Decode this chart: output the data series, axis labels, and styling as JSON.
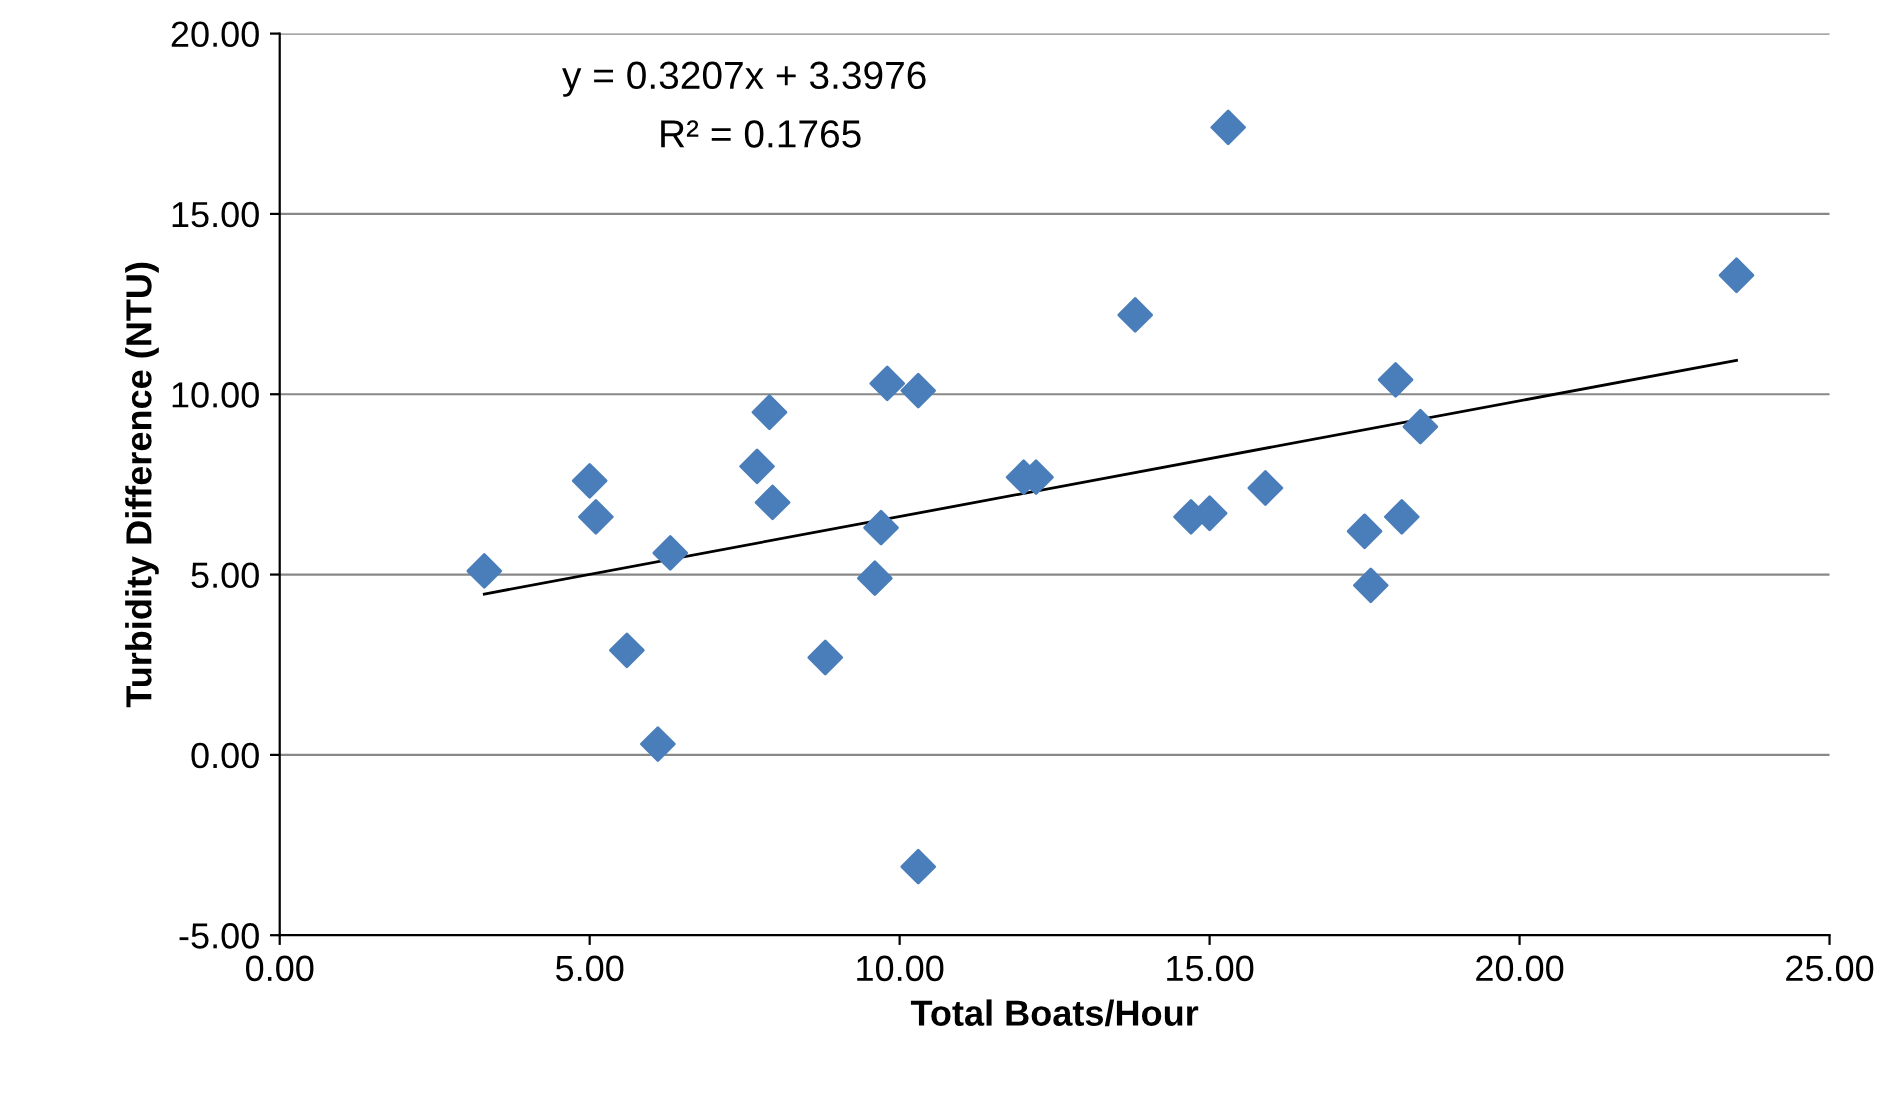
{
  "chart_data": {
    "type": "scatter",
    "xlabel": "Total Boats/Hour",
    "ylabel": "Turbidity Difference (NTU)",
    "annotations": [
      "y = 0.3207x + 3.3976",
      "R² = 0.1765"
    ],
    "series": [
      {
        "color": "#4a7ebb",
        "marker": "diamond",
        "x": [
          3.3,
          5.0,
          5.1,
          5.6,
          6.1,
          6.3,
          7.7,
          7.9,
          7.95,
          8.8,
          9.6,
          9.7,
          9.8,
          10.3,
          10.3,
          12.0,
          12.2,
          13.8,
          14.7,
          15.0,
          15.3,
          15.9,
          17.5,
          17.6,
          18.0,
          18.1,
          18.4,
          23.5
        ],
        "values": [
          5.1,
          7.6,
          6.6,
          2.9,
          0.3,
          5.6,
          8.0,
          9.5,
          7.0,
          2.7,
          4.9,
          6.3,
          10.3,
          10.1,
          -3.1,
          7.7,
          7.7,
          12.2,
          6.6,
          6.7,
          17.4,
          7.4,
          6.2,
          4.7,
          10.4,
          6.6,
          9.1,
          13.3
        ]
      },
      {
        "type": "line",
        "color": "#000000",
        "marker": "none",
        "x": [
          3.3,
          23.5
        ],
        "values": [
          4.46,
          10.94
        ]
      }
    ],
    "xlim": [
      0,
      25
    ],
    "xticks": [
      {
        "value": 0,
        "label": "0.00"
      },
      {
        "value": 5,
        "label": "5.00"
      },
      {
        "value": 10,
        "label": "10.00"
      },
      {
        "value": 15,
        "label": "15.00"
      },
      {
        "value": 20,
        "label": "20.00"
      },
      {
        "value": 25,
        "label": "25.00"
      }
    ],
    "ylim": [
      -5,
      20
    ],
    "yticks": [
      {
        "value": -5,
        "label": "-5.00"
      },
      {
        "value": 0,
        "label": "0.00"
      },
      {
        "value": 5,
        "label": "5.00"
      },
      {
        "value": 10,
        "label": "10.00"
      },
      {
        "value": 15,
        "label": "15.00"
      },
      {
        "value": 20,
        "label": "20.00"
      }
    ],
    "grid": "y",
    "legend": false
  }
}
